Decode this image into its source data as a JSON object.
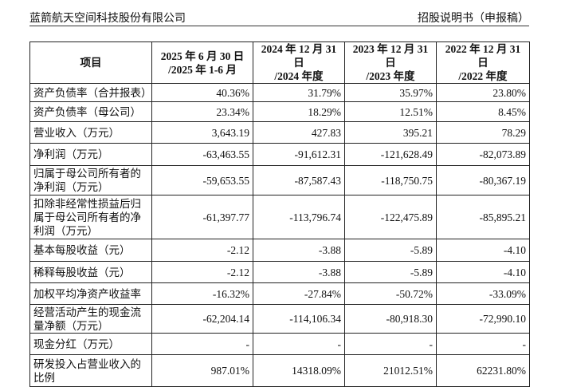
{
  "header": {
    "company": "蓝箭航天空间科技股份有限公司",
    "document": "招股说明书（申报稿）"
  },
  "table": {
    "columns": [
      [
        "项目"
      ],
      [
        "2025 年 6 月 30 日",
        "/2025 年 1-6 月"
      ],
      [
        "2024 年 12 月 31 日",
        "/2024 年度"
      ],
      [
        "2023 年 12 月 31 日",
        "/2023 年度"
      ],
      [
        "2022 年 12 月 31 日",
        "/2022 年度"
      ]
    ],
    "rows": [
      [
        "资产负债率（合并报表）",
        "40.36%",
        "31.79%",
        "35.97%",
        "23.80%"
      ],
      [
        "资产负债率（母公司）",
        "23.34%",
        "18.29%",
        "12.51%",
        "8.45%"
      ],
      [
        "营业收入（万元）",
        "3,643.19",
        "427.83",
        "395.21",
        "78.29"
      ],
      [
        "净利润（万元）",
        "-63,463.55",
        "-91,612.31",
        "-121,628.49",
        "-82,073.89"
      ],
      [
        "归属于母公司所有者的净利润（万元）",
        "-59,653.55",
        "-87,587.43",
        "-118,750.75",
        "-80,367.19"
      ],
      [
        "扣除非经常性损益后归属于母公司所有者的净利润（万元）",
        "-61,397.77",
        "-113,796.74",
        "-122,475.89",
        "-85,895.21"
      ],
      [
        "基本每股收益（元）",
        "-2.12",
        "-3.88",
        "-5.89",
        "-4.10"
      ],
      [
        "稀释每股收益（元）",
        "-2.12",
        "-3.88",
        "-5.89",
        "-4.10"
      ],
      [
        "加权平均净资产收益率",
        "-16.32%",
        "-27.84%",
        "-50.72%",
        "-33.09%"
      ],
      [
        "经营活动产生的现金流量净额（万元）",
        "-62,204.14",
        "-114,106.34",
        "-80,918.30",
        "-72,990.10"
      ],
      [
        "现金分红（万元）",
        "-",
        "-",
        "-",
        "-"
      ],
      [
        "研发投入占营业收入的比例",
        "987.01%",
        "14318.09%",
        "21012.51%",
        "62231.80%"
      ]
    ]
  }
}
